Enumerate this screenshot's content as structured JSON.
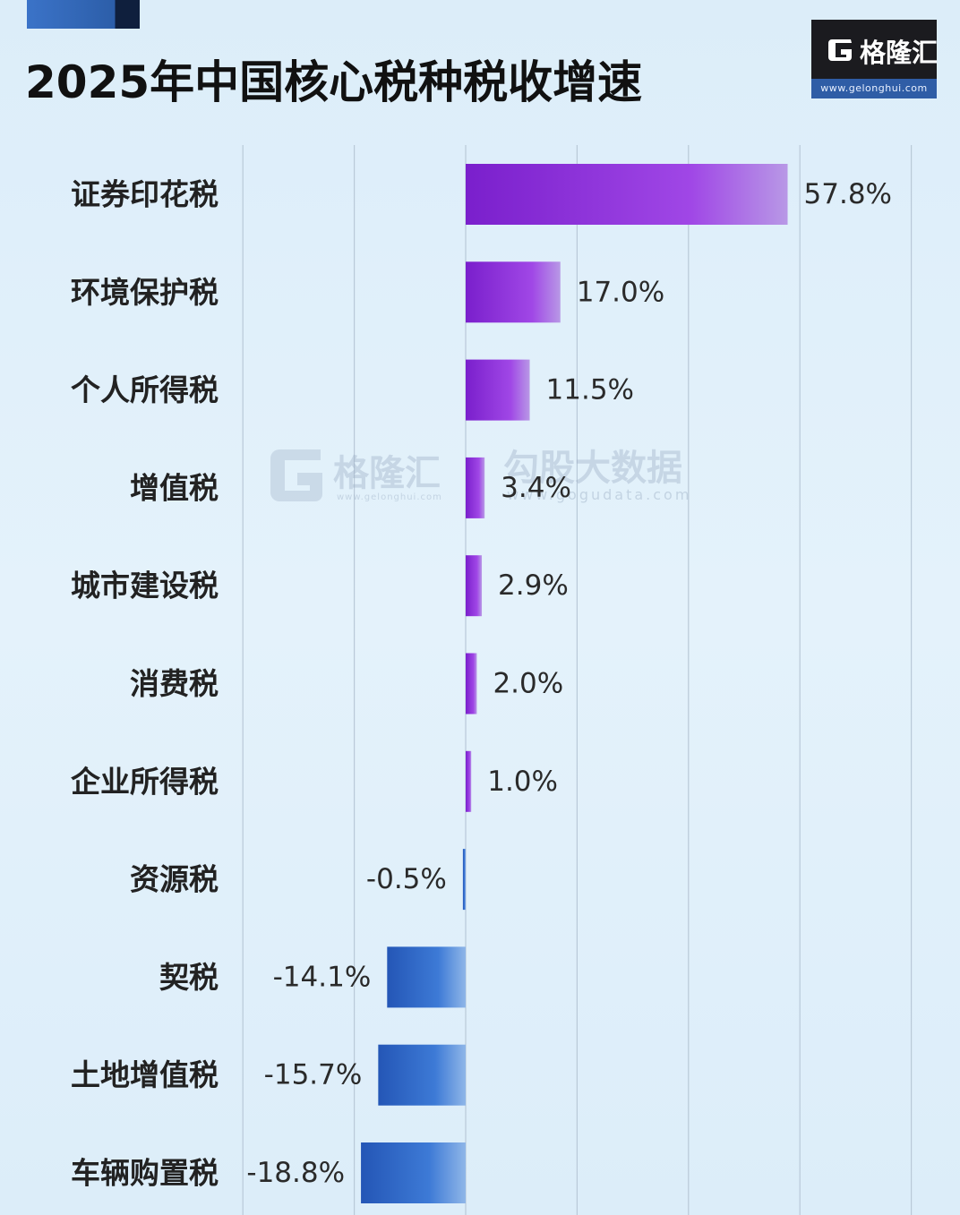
{
  "title": "2025年中国核心税种税收增速",
  "brand": {
    "logo_text": "格隆汇",
    "logo_url": "www.gelonghui.com"
  },
  "watermarks": [
    {
      "text": "格隆汇",
      "url": "www.gelonghui.com"
    },
    {
      "text": "勾股大数据",
      "url": "www.gogudata.com"
    }
  ],
  "colors": {
    "positive_bar": "#8a2ed6",
    "negative_bar": "#2f67c9",
    "grid": "#b9c9d8"
  },
  "chart_data": {
    "type": "bar",
    "orientation": "horizontal",
    "title": "2025年中国核心税种税收增速",
    "categories": [
      "证券印花税",
      "环境保护税",
      "个人所得税",
      "增值税",
      "城市建设税",
      "消费税",
      "企业所得税",
      "资源税",
      "契税",
      "土地增值税",
      "车辆购置税"
    ],
    "values": [
      57.8,
      17.0,
      11.5,
      3.4,
      2.9,
      2.0,
      1.0,
      -0.5,
      -14.1,
      -15.7,
      -18.8
    ],
    "value_labels": [
      "57.8%",
      "17.0%",
      "11.5%",
      "3.4%",
      "2.9%",
      "2.0%",
      "1.0%",
      "-0.5%",
      "-14.1%",
      "-15.7%",
      "-18.8%"
    ],
    "unit": "%",
    "xlim": [
      -40,
      80
    ],
    "grid_step": 20,
    "grid": true,
    "legend": "none"
  }
}
